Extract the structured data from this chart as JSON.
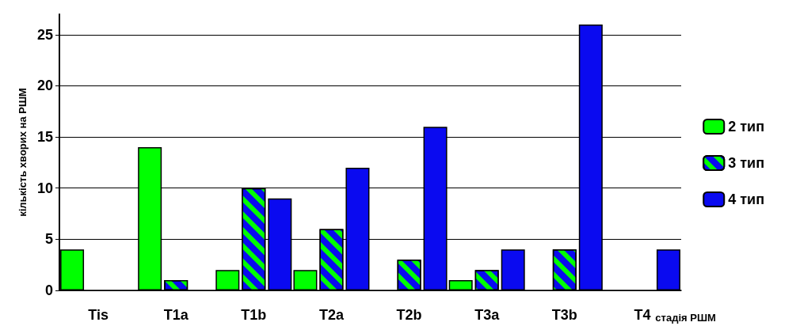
{
  "chart_data": {
    "type": "bar",
    "xlabel": "стадія РШМ",
    "ylabel": "кількість хворих на РШМ",
    "categories": [
      "Tis",
      "T1a",
      "T1b",
      "T2a",
      "T2b",
      "T3a",
      "T3b",
      "T4"
    ],
    "series": [
      {
        "name": "2 тип",
        "color": "#00ff00",
        "values": [
          4,
          14,
          2,
          2,
          null,
          1,
          null,
          null
        ]
      },
      {
        "name": "3 тип",
        "color": "#0a0af0",
        "values": [
          null,
          1,
          10,
          6,
          3,
          2,
          4,
          null
        ]
      },
      {
        "name": "4 тип",
        "color": "#0a0af0",
        "values": [
          null,
          null,
          9,
          12,
          16,
          4,
          26,
          4
        ]
      }
    ],
    "ylim": [
      0,
      27
    ],
    "yticks": [
      0,
      5,
      10,
      15,
      20,
      25
    ],
    "grid": "y",
    "legend": "right"
  }
}
